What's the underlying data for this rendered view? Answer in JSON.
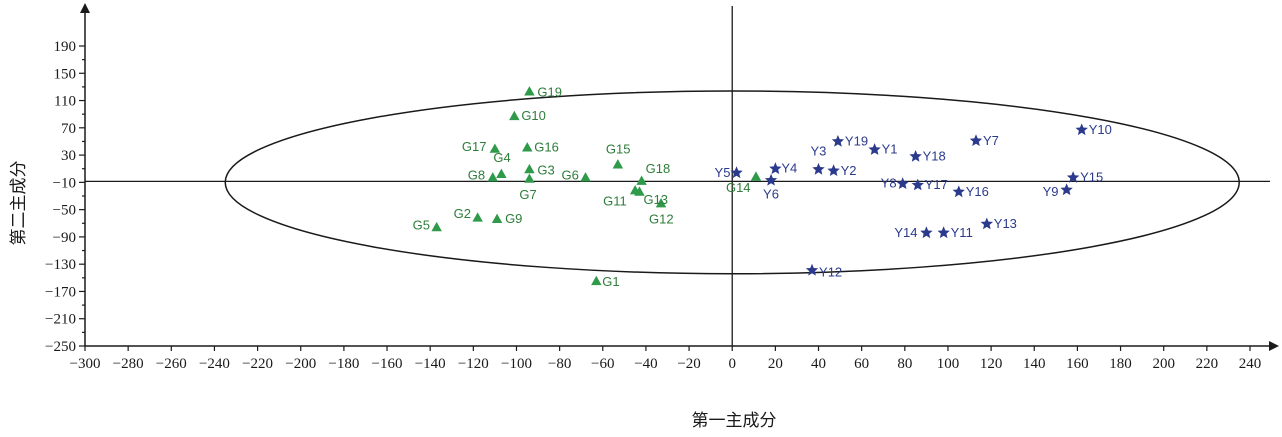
{
  "chart_data": {
    "type": "scatter",
    "xlabel": "第一主成分",
    "ylabel": "第二主成分",
    "xlim": [
      -300,
      240
    ],
    "ylim": [
      -250,
      230
    ],
    "xticks": [
      "−300",
      "−280",
      "−260",
      "−240",
      "−220",
      "−200",
      "−180",
      "−160",
      "−140",
      "−120",
      "−100",
      "−80",
      "−60",
      "−40",
      "−20",
      "0",
      "20",
      "40",
      "60",
      "80",
      "100",
      "120",
      "140",
      "160",
      "180",
      "200",
      "220",
      "240"
    ],
    "xtick_values": [
      -300,
      -280,
      -260,
      -240,
      -220,
      -200,
      -180,
      -160,
      -140,
      -120,
      -100,
      -80,
      -60,
      -40,
      -20,
      0,
      20,
      40,
      60,
      80,
      100,
      120,
      140,
      160,
      180,
      200,
      220,
      240
    ],
    "yticks": [
      "190",
      "150",
      "110",
      "70",
      "30",
      "−10",
      "−50",
      "−90",
      "−130",
      "−170",
      "−210",
      "−250"
    ],
    "ytick_values": [
      190,
      150,
      110,
      70,
      30,
      -10,
      -50,
      -90,
      -130,
      -170,
      -210,
      -250
    ],
    "grid": false,
    "ellipse": {
      "cx": 0,
      "cy": -10,
      "rx": 235,
      "ry": 134
    },
    "colors": {
      "G": "#2e9a4a",
      "Y": "#2b3a8c"
    },
    "series": [
      {
        "marker": "triangle",
        "points": [
          {
            "label": "G1",
            "x": -63,
            "y": -155
          },
          {
            "label": "G2",
            "x": -118,
            "y": -62
          },
          {
            "label": "G3",
            "x": -94,
            "y": 9
          },
          {
            "label": "G4",
            "x": -107,
            "y": 2
          },
          {
            "label": "G5",
            "x": -137,
            "y": -76
          },
          {
            "label": "G6",
            "x": -68,
            "y": -3
          },
          {
            "label": "G7",
            "x": -94,
            "y": -5
          },
          {
            "label": "G8",
            "x": -111,
            "y": -3
          },
          {
            "label": "G9",
            "x": -109,
            "y": -64
          },
          {
            "label": "G10",
            "x": -101,
            "y": 87
          },
          {
            "label": "G11",
            "x": -45,
            "y": -22
          },
          {
            "label": "G12",
            "x": -33,
            "y": -41
          },
          {
            "label": "G13",
            "x": -43,
            "y": -24
          },
          {
            "label": "G14",
            "x": 11,
            "y": -2
          },
          {
            "label": "G15",
            "x": -53,
            "y": 16
          },
          {
            "label": "G16",
            "x": -95,
            "y": 41
          },
          {
            "label": "G17",
            "x": -110,
            "y": 39
          },
          {
            "label": "G18",
            "x": -42,
            "y": -8
          },
          {
            "label": "G19",
            "x": -94,
            "y": 123
          }
        ]
      },
      {
        "marker": "star",
        "points": [
          {
            "label": "Y1",
            "x": 66,
            "y": 38
          },
          {
            "label": "Y2",
            "x": 47,
            "y": 7
          },
          {
            "label": "Y3",
            "x": 40,
            "y": 9
          },
          {
            "label": "Y4",
            "x": 20,
            "y": 10
          },
          {
            "label": "Y5",
            "x": 2,
            "y": 4
          },
          {
            "label": "Y6",
            "x": 18,
            "y": -7
          },
          {
            "label": "Y7",
            "x": 113,
            "y": 51
          },
          {
            "label": "Y8",
            "x": 79,
            "y": -12
          },
          {
            "label": "Y9",
            "x": 155,
            "y": -21
          },
          {
            "label": "Y10",
            "x": 162,
            "y": 67
          },
          {
            "label": "Y11",
            "x": 98,
            "y": -84
          },
          {
            "label": "Y12",
            "x": 37,
            "y": -139
          },
          {
            "label": "Y13",
            "x": 118,
            "y": -71
          },
          {
            "label": "Y14",
            "x": 90,
            "y": -84
          },
          {
            "label": "Y15",
            "x": 158,
            "y": -3
          },
          {
            "label": "Y16",
            "x": 105,
            "y": -24
          },
          {
            "label": "Y17",
            "x": 86,
            "y": -14
          },
          {
            "label": "Y18",
            "x": 85,
            "y": 28
          },
          {
            "label": "Y19",
            "x": 49,
            "y": 50
          }
        ]
      }
    ]
  }
}
